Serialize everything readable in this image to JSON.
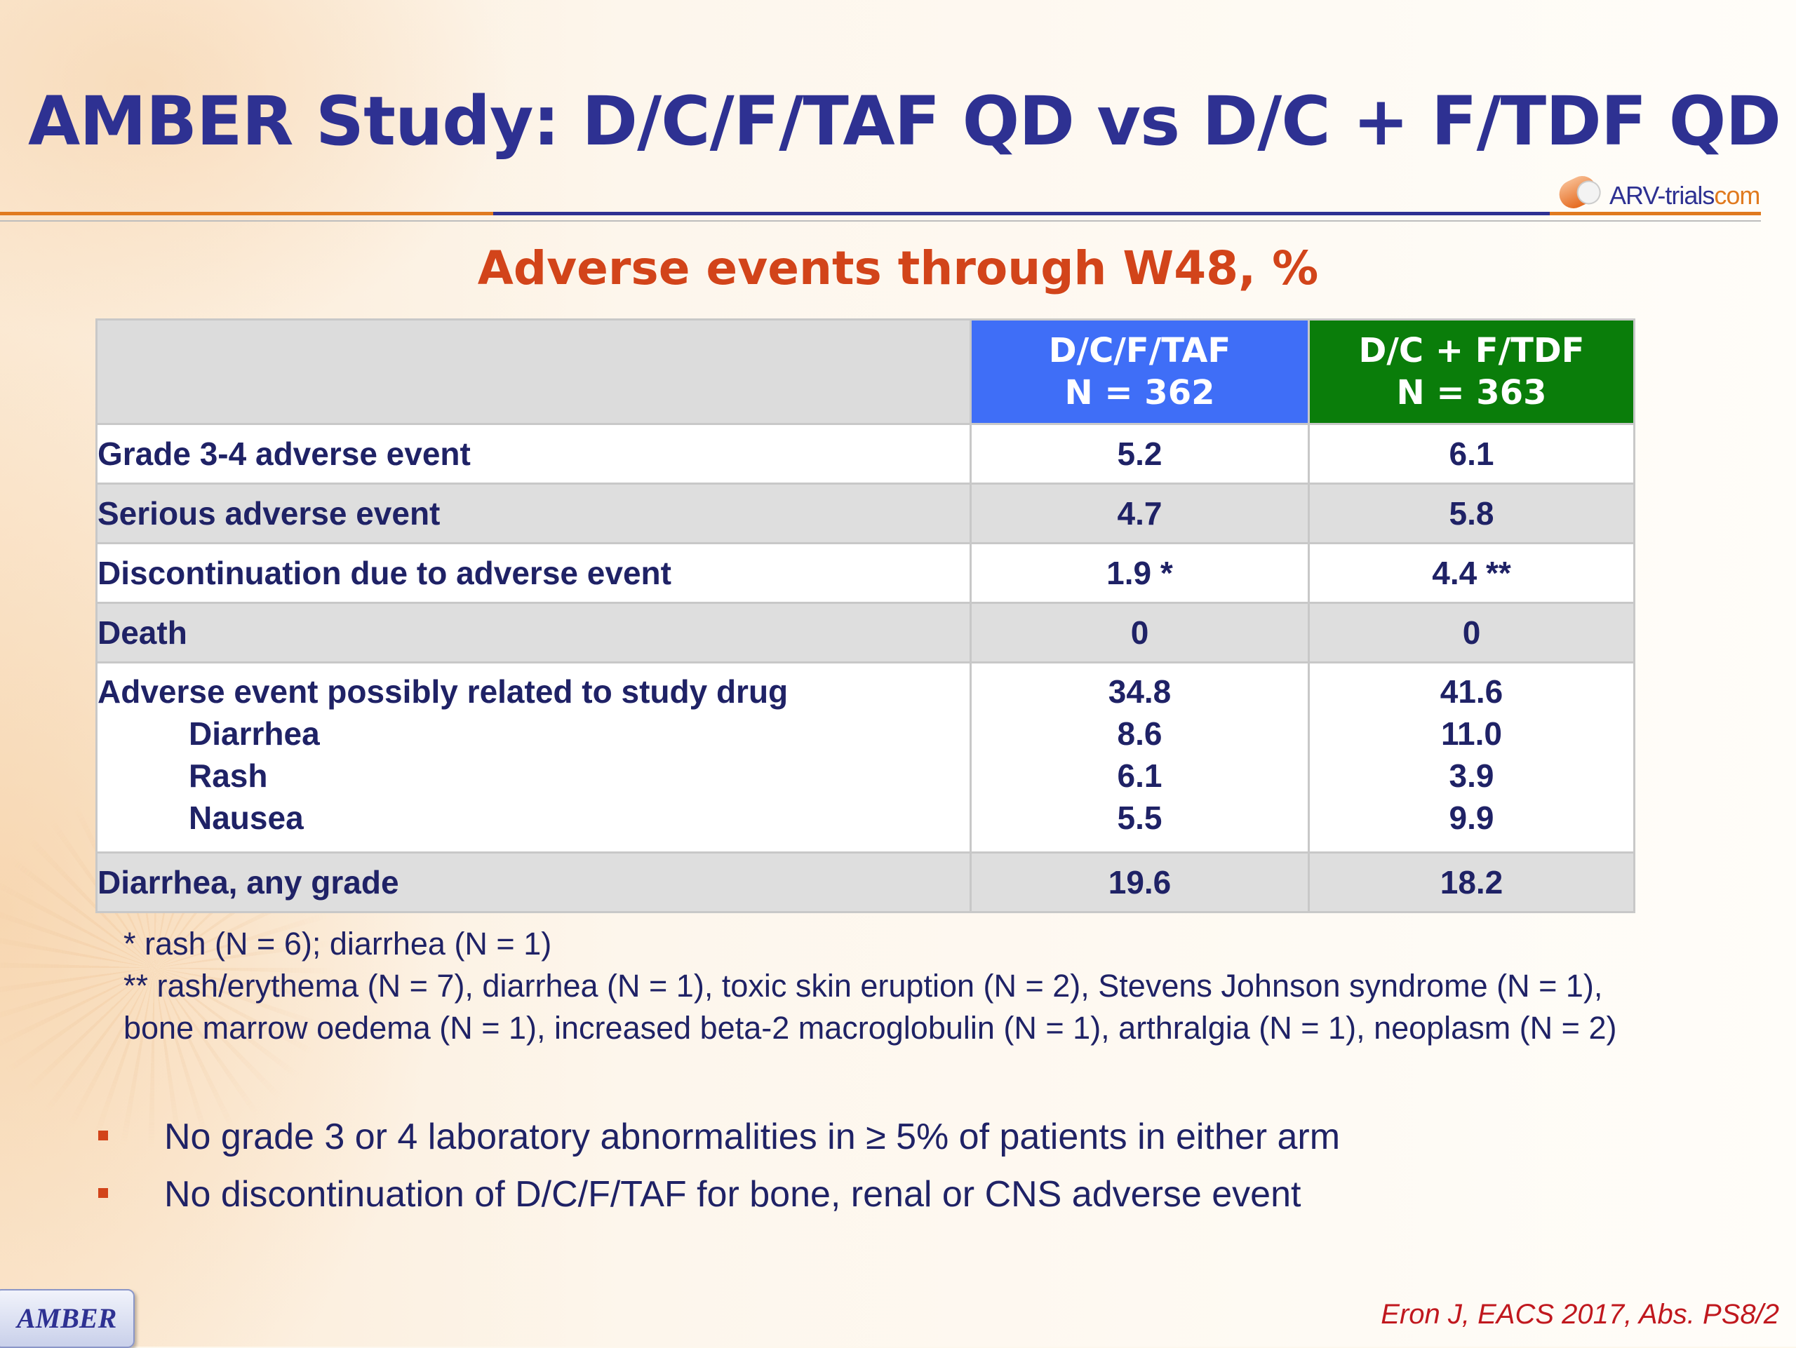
{
  "slide": {
    "title": "AMBER Study: D/C/F/TAF QD vs D/C + F/TDF QD",
    "logo": {
      "name": "ARV-trials",
      "domain": "com",
      "icon": "pill-capsule-icon"
    },
    "subtitle": "Adverse events through W48, %"
  },
  "table": {
    "columns": [
      {
        "line1": "D/C/F/TAF",
        "line2": "N = 362",
        "color": "#3f6ef7"
      },
      {
        "line1": "D/C + F/TDF",
        "line2": "N = 363",
        "color": "#0a7d0a"
      }
    ],
    "rows": [
      {
        "label": "Grade 3-4 adverse event",
        "v1": "5.2",
        "v2": "6.1"
      },
      {
        "label": "Serious adverse event",
        "v1": "4.7",
        "v2": "5.8"
      },
      {
        "label": "Discontinuation due to adverse event",
        "v1": "1.9 *",
        "v2": "4.4 **"
      },
      {
        "label": "Death",
        "v1": "0",
        "v2": "0"
      }
    ],
    "related": {
      "label": "Adverse event possibly related to study drug",
      "v1": "34.8",
      "v2": "41.6",
      "sub": [
        {
          "label": "Diarrhea",
          "v1": "8.6",
          "v2": "11.0"
        },
        {
          "label": "Rash",
          "v1": "6.1",
          "v2": "3.9"
        },
        {
          "label": "Nausea",
          "v1": "5.5",
          "v2": "9.9"
        }
      ]
    },
    "last_row": {
      "label": "Diarrhea, any grade",
      "v1": "19.6",
      "v2": "18.2"
    }
  },
  "footnotes": [
    "* rash (N = 6); diarrhea (N = 1)",
    "** rash/erythema (N = 7), diarrhea (N = 1), toxic skin eruption (N = 2), Stevens Johnson syndrome (N = 1),",
    "bone marrow oedema (N = 1), increased beta-2 macroglobulin (N = 1), arthralgia (N = 1), neoplasm (N = 2)"
  ],
  "bullets": [
    "No grade 3 or 4 laboratory abnormalities in ≥ 5% of patients in either arm",
    "No discontinuation of D/C/F/TAF for bone, renal or CNS adverse event"
  ],
  "badge": "AMBER",
  "citation": "Eron J, EACS 2017, Abs. PS8/2"
}
